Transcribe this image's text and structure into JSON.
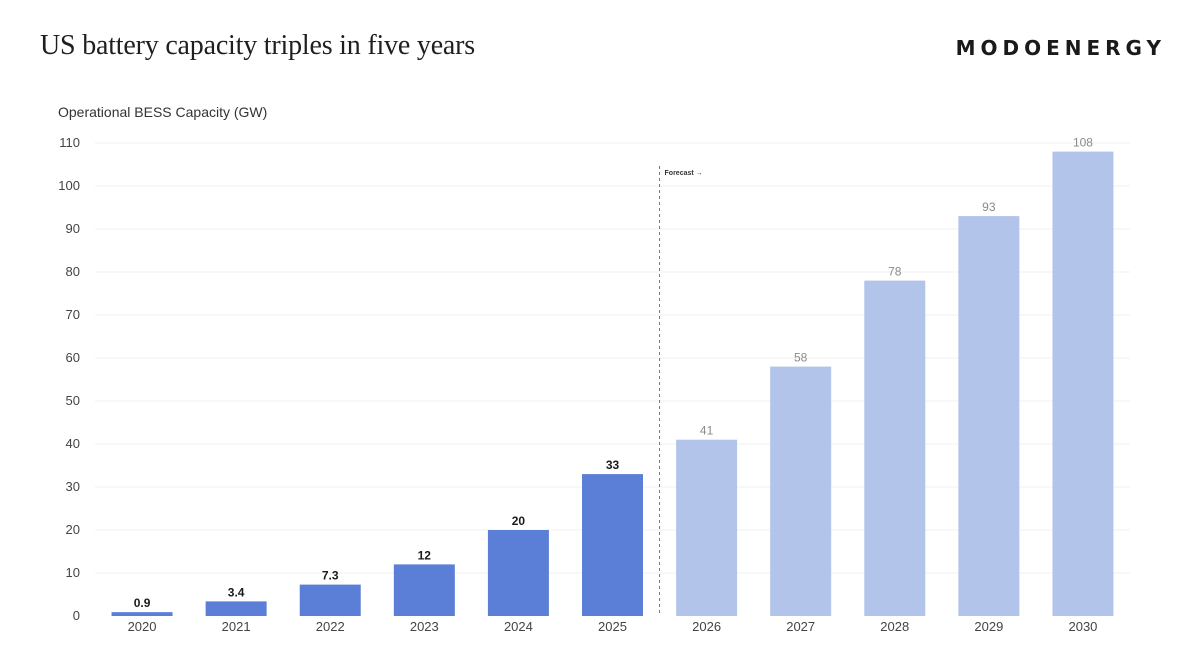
{
  "header": {
    "title": "US battery capacity triples in five years",
    "brand": "MODOENERGY"
  },
  "chart_data": {
    "type": "bar",
    "title": "US battery capacity triples in five years",
    "ylabel": "Operational BESS Capacity (GW)",
    "xlabel": "",
    "ylim": [
      0,
      110
    ],
    "yticks": [
      0,
      10,
      20,
      30,
      40,
      50,
      60,
      70,
      80,
      90,
      100,
      110
    ],
    "grid": true,
    "categories": [
      "2020",
      "2021",
      "2022",
      "2023",
      "2024",
      "2025",
      "2026",
      "2027",
      "2028",
      "2029",
      "2030"
    ],
    "values": [
      0.9,
      3.4,
      7.3,
      12,
      20,
      33,
      41,
      58,
      78,
      93,
      108
    ],
    "value_labels": [
      "0.9",
      "3.4",
      "7.3",
      "12",
      "20",
      "33",
      "41",
      "58",
      "78",
      "93",
      "108"
    ],
    "forecast_start": "2026",
    "forecast_label": "Forecast →",
    "colors": {
      "actual": "#5b7fd6",
      "forecast": "#b3c4ea"
    }
  }
}
